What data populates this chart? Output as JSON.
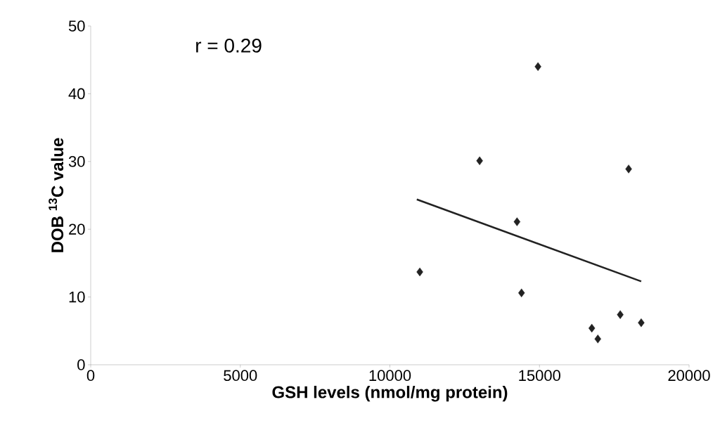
{
  "chart_data": {
    "type": "scatter",
    "xlabel": "GSH levels (nmol/mg protein)",
    "ylabel": "DOB $^{13}$C value",
    "annotations": [
      "r = 0.29"
    ],
    "xlim": [
      0,
      20000
    ],
    "ylim": [
      0,
      50
    ],
    "xticks": [
      0,
      5000,
      10000,
      15000,
      20000
    ],
    "yticks": [
      0,
      10,
      20,
      30,
      40,
      50
    ],
    "grid": false,
    "marker": "diamond",
    "series": [
      {
        "color": "#222222",
        "x": [
          11000,
          13000,
          14950,
          14250,
          14400,
          17980,
          16750,
          16950,
          17700,
          18400
        ],
        "values": [
          13.7,
          30.1,
          44,
          21.1,
          10.6,
          28.9,
          5.4,
          3.8,
          7.4,
          6.2
        ]
      },
      {
        "type": "line",
        "color": "#222222",
        "marker": "none",
        "line_style": "solid",
        "x": [
          10900,
          18400
        ],
        "values": [
          24.4,
          12.3
        ]
      }
    ]
  }
}
